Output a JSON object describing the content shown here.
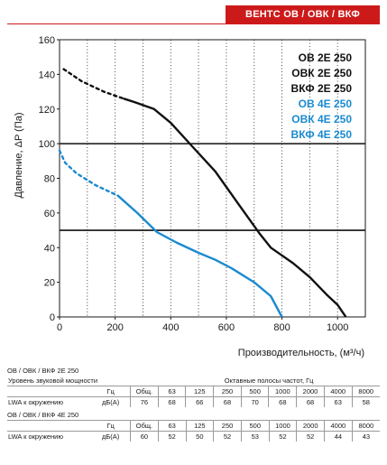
{
  "header": {
    "badge": "ВЕНТС ОВ / ОВК / ВКФ"
  },
  "chart_data": {
    "type": "line",
    "title": "",
    "xlabel": "Производительность, (м³/ч)",
    "ylabel": "Давление, ΔP (Па)",
    "xlim": [
      0,
      1100
    ],
    "ylim": [
      0,
      160
    ],
    "xticks": [
      0,
      200,
      400,
      600,
      800,
      1000
    ],
    "yticks": [
      0,
      20,
      40,
      60,
      80,
      100,
      120,
      140,
      160
    ],
    "grid": "vertical",
    "reference_lines_y": [
      50,
      100
    ],
    "legend_position": "top-right",
    "legend": [
      {
        "label": "ОВ 2Е 250",
        "color": "#111111"
      },
      {
        "label": "ОВК 2Е 250",
        "color": "#111111"
      },
      {
        "label": "ВКФ 2Е 250",
        "color": "#111111"
      },
      {
        "label": "ОВ 4Е 250",
        "color": "#1a8ad0"
      },
      {
        "label": "ОВК 4Е 250",
        "color": "#1a8ad0"
      },
      {
        "label": "ВКФ 4Е 250",
        "color": "#1a8ad0"
      }
    ],
    "series": [
      {
        "color": "#111111",
        "dashed": [
          [
            15,
            143
          ],
          [
            80,
            136
          ],
          [
            160,
            130
          ],
          [
            230,
            126
          ]
        ],
        "solid": [
          [
            230,
            126
          ],
          [
            270,
            124
          ],
          [
            340,
            120
          ],
          [
            400,
            112
          ],
          [
            480,
            98
          ],
          [
            560,
            84
          ],
          [
            640,
            66
          ],
          [
            720,
            48
          ],
          [
            760,
            40
          ],
          [
            840,
            31
          ],
          [
            900,
            23
          ],
          [
            960,
            13
          ],
          [
            1000,
            7
          ],
          [
            1030,
            0
          ]
        ]
      },
      {
        "color": "#1a8ad0",
        "dashed": [
          [
            0,
            96
          ],
          [
            20,
            89
          ],
          [
            60,
            83
          ],
          [
            130,
            76
          ],
          [
            210,
            70
          ]
        ],
        "solid": [
          [
            210,
            70
          ],
          [
            280,
            60
          ],
          [
            350,
            49
          ],
          [
            420,
            43
          ],
          [
            500,
            37
          ],
          [
            560,
            33
          ],
          [
            620,
            28
          ],
          [
            700,
            20
          ],
          [
            760,
            12
          ],
          [
            800,
            0
          ]
        ]
      }
    ]
  },
  "tables": [
    {
      "caption": "ОВ / ОВК / ВКФ 2Е 250",
      "level_label": "Уровень звуковой мощности",
      "bands_label": "Октавные полосы частот, Гц",
      "units_label": "Гц",
      "total_label": "Общ.",
      "bands": [
        "63",
        "125",
        "250",
        "500",
        "1000",
        "2000",
        "4000",
        "8000"
      ],
      "row_label": "LWA к окружению",
      "row_unit": "дБ(А)",
      "row_total": "76",
      "row_values": [
        "68",
        "66",
        "68",
        "70",
        "68",
        "68",
        "63",
        "58"
      ]
    },
    {
      "caption": "ОВ / ОВК / ВКФ 4Е 250",
      "units_label": "Гц",
      "total_label": "Общ.",
      "bands": [
        "63",
        "125",
        "250",
        "500",
        "1000",
        "2000",
        "4000",
        "8000"
      ],
      "row_label": "LWA к окружению",
      "row_unit": "дБ(А)",
      "row_total": "60",
      "row_values": [
        "52",
        "50",
        "52",
        "53",
        "52",
        "52",
        "44",
        "43"
      ]
    }
  ]
}
